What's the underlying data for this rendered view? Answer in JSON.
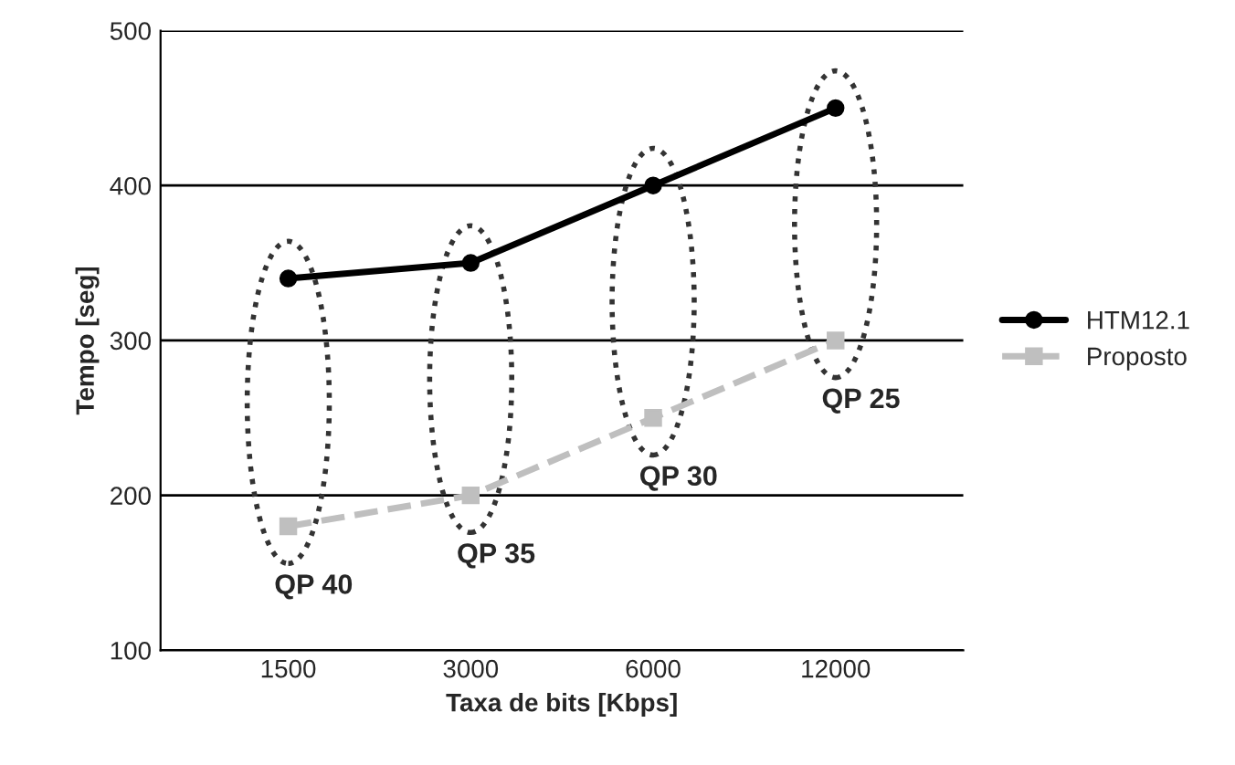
{
  "chart_data": {
    "type": "line",
    "xlabel": "Taxa de bits [Kbps]",
    "ylabel": "Tempo [seg]",
    "categories": [
      "1500",
      "3000",
      "6000",
      "12000"
    ],
    "series": [
      {
        "name": "HTM12.1",
        "color": "#000000",
        "values": [
          340,
          350,
          400,
          450
        ],
        "marker": "circle",
        "line_style": "solid"
      },
      {
        "name": "Proposto",
        "color": "#bfbfbf",
        "values": [
          180,
          200,
          250,
          300
        ],
        "marker": "square",
        "line_style": "dashed"
      }
    ],
    "ylim": [
      100,
      500
    ],
    "yticks": [
      100,
      200,
      300,
      400,
      500
    ],
    "grid": "y",
    "legend": "right",
    "annotations": [
      "QP 40",
      "QP 35",
      "QP 30",
      "QP 25"
    ]
  }
}
